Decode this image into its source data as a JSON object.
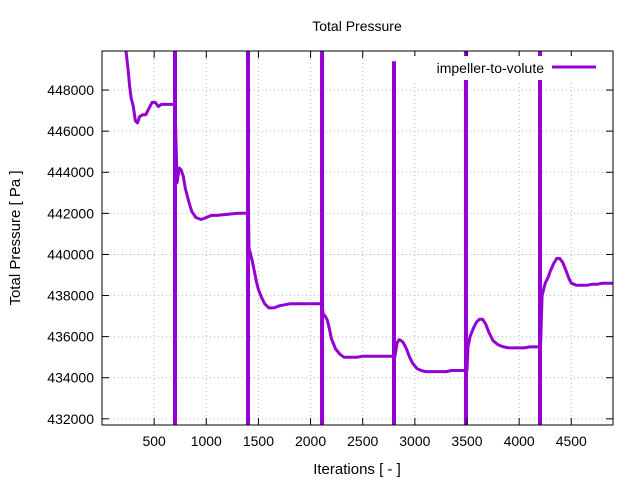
{
  "chart_data": {
    "type": "line",
    "title": "Total Pressure",
    "xlabel": "Iterations [ - ]",
    "ylabel": "Total Pressure [ Pa ]",
    "xlim": [
      0,
      4900
    ],
    "ylim": [
      431700,
      449900
    ],
    "xticks": [
      500,
      1000,
      1500,
      2000,
      2500,
      3000,
      3500,
      4000,
      4500
    ],
    "yticks": [
      432000,
      434000,
      436000,
      438000,
      440000,
      442000,
      444000,
      446000,
      448000
    ],
    "grid": true,
    "legend_position": "top-right",
    "series": [
      {
        "name": "impeller-to-volute",
        "color": "#9400d3",
        "x": [
          230,
          250,
          265,
          280,
          300,
          320,
          340,
          360,
          390,
          420,
          450,
          480,
          510,
          540,
          570,
          600,
          640,
          680,
          700,
          720,
          740,
          760,
          780,
          800,
          830,
          860,
          900,
          950,
          1000,
          1050,
          1100,
          1200,
          1300,
          1390,
          1405,
          1410,
          1420,
          1440,
          1460,
          1480,
          1500,
          1530,
          1560,
          1600,
          1650,
          1700,
          1750,
          1800,
          1850,
          1900,
          1950,
          2000,
          2050,
          2100,
          2110,
          2120,
          2140,
          2160,
          2180,
          2200,
          2240,
          2280,
          2320,
          2360,
          2400,
          2450,
          2500,
          2550,
          2600,
          2650,
          2700,
          2750,
          2795,
          2810,
          2830,
          2850,
          2870,
          2890,
          2920,
          2950,
          2980,
          3020,
          3060,
          3100,
          3150,
          3200,
          3250,
          3300,
          3350,
          3400,
          3450,
          3490,
          3500,
          3510,
          3530,
          3560,
          3590,
          3620,
          3650,
          3680,
          3710,
          3750,
          3800,
          3850,
          3900,
          3950,
          4000,
          4050,
          4100,
          4150,
          4190,
          4205,
          4220,
          4250,
          4280,
          4300,
          4330,
          4360,
          4390,
          4420,
          4450,
          4480,
          4500,
          4550,
          4600,
          4650,
          4700,
          4750,
          4800,
          4850,
          4900
        ],
        "values": [
          449900,
          449000,
          448200,
          447600,
          447200,
          446500,
          446400,
          446700,
          446800,
          446800,
          447100,
          447400,
          447400,
          447200,
          447300,
          447300,
          447300,
          447300,
          447300,
          443500,
          444200,
          444100,
          443800,
          443200,
          442600,
          442100,
          441800,
          441700,
          441800,
          441900,
          441900,
          441950,
          442000,
          442000,
          442000,
          440300,
          440100,
          439700,
          439200,
          438700,
          438300,
          437900,
          437600,
          437400,
          437400,
          437500,
          437550,
          437600,
          437600,
          437600,
          437600,
          437600,
          437600,
          437600,
          437600,
          437100,
          437000,
          436800,
          436400,
          435900,
          435400,
          435150,
          435000,
          435000,
          435000,
          435000,
          435050,
          435050,
          435050,
          435050,
          435050,
          435050,
          435050,
          435050,
          435700,
          435850,
          435800,
          435700,
          435400,
          435000,
          434700,
          434450,
          434350,
          434300,
          434300,
          434300,
          434300,
          434300,
          434350,
          434350,
          434350,
          434350,
          434350,
          435500,
          436000,
          436400,
          436700,
          436850,
          436850,
          436600,
          436200,
          435800,
          435600,
          435500,
          435450,
          435450,
          435450,
          435450,
          435500,
          435500,
          435500,
          435500,
          438000,
          438600,
          438900,
          439200,
          439550,
          439800,
          439800,
          439600,
          439200,
          438800,
          438600,
          438500,
          438500,
          438500,
          438550,
          438550,
          438600,
          438600,
          438600
        ],
        "spikes": [
          {
            "x": 700,
            "range": [
              431700,
              449900
            ]
          },
          {
            "x": 1400,
            "range": [
              431700,
              449900
            ]
          },
          {
            "x": 2110,
            "range": [
              431700,
              449900
            ]
          },
          {
            "x": 2800,
            "range": [
              431700,
              449400
            ]
          },
          {
            "x": 3490,
            "range": [
              431700,
              449900
            ]
          },
          {
            "x": 4200,
            "range": [
              431700,
              449900
            ]
          }
        ]
      }
    ]
  }
}
